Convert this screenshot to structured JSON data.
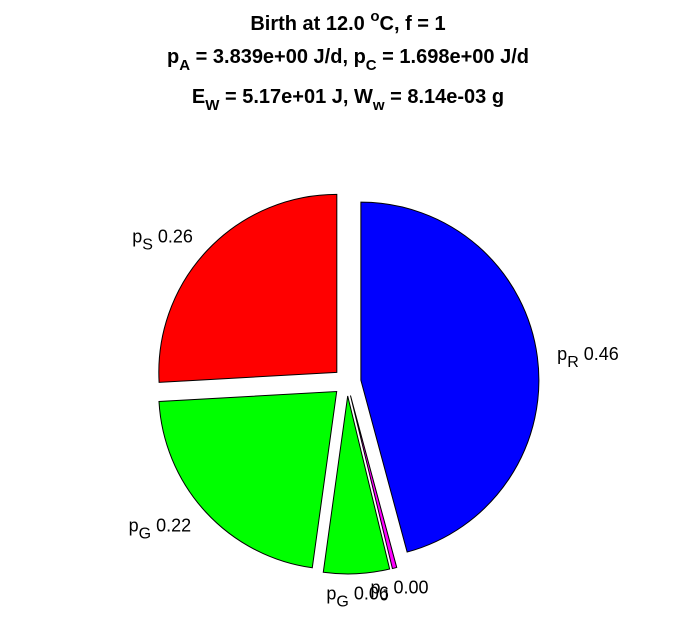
{
  "figure": {
    "title": {
      "line1": {
        "prefix": "Birth at 12.0 ",
        "sup": "o",
        "suffix": "C, f = 1"
      },
      "line2": {
        "a_var": "p",
        "a_sub": "A",
        "a_val": " = 3.839e+00 J/d, ",
        "c_var": "p",
        "c_sub": "C",
        "c_val": " = 1.698e+00 J/d"
      },
      "line3": {
        "e_var": "E",
        "e_sub": "W",
        "e_val": " = 5.17e+01 J, ",
        "w_var": "W",
        "w_sub": "w",
        "w_val": " = 8.14e-03 g"
      }
    }
  },
  "chart_data": {
    "type": "pie",
    "exploded": true,
    "slices": [
      {
        "label": "p",
        "sub": "R",
        "value": 0.46,
        "value_text": "0.46",
        "color": "#0000ff"
      },
      {
        "label": "p",
        "sub": "J",
        "value": 0.004,
        "value_text": "0.00",
        "color": "#ff00ff"
      },
      {
        "label": "p",
        "sub": "G",
        "value": 0.06,
        "value_text": "0.06",
        "color": "#00ff00"
      },
      {
        "label": "p",
        "sub": "G",
        "value": 0.22,
        "value_text": "0.22",
        "color": "#00ff00"
      },
      {
        "label": "p",
        "sub": "S",
        "value": 0.26,
        "value_text": "0.26",
        "color": "#ff0000"
      }
    ]
  }
}
